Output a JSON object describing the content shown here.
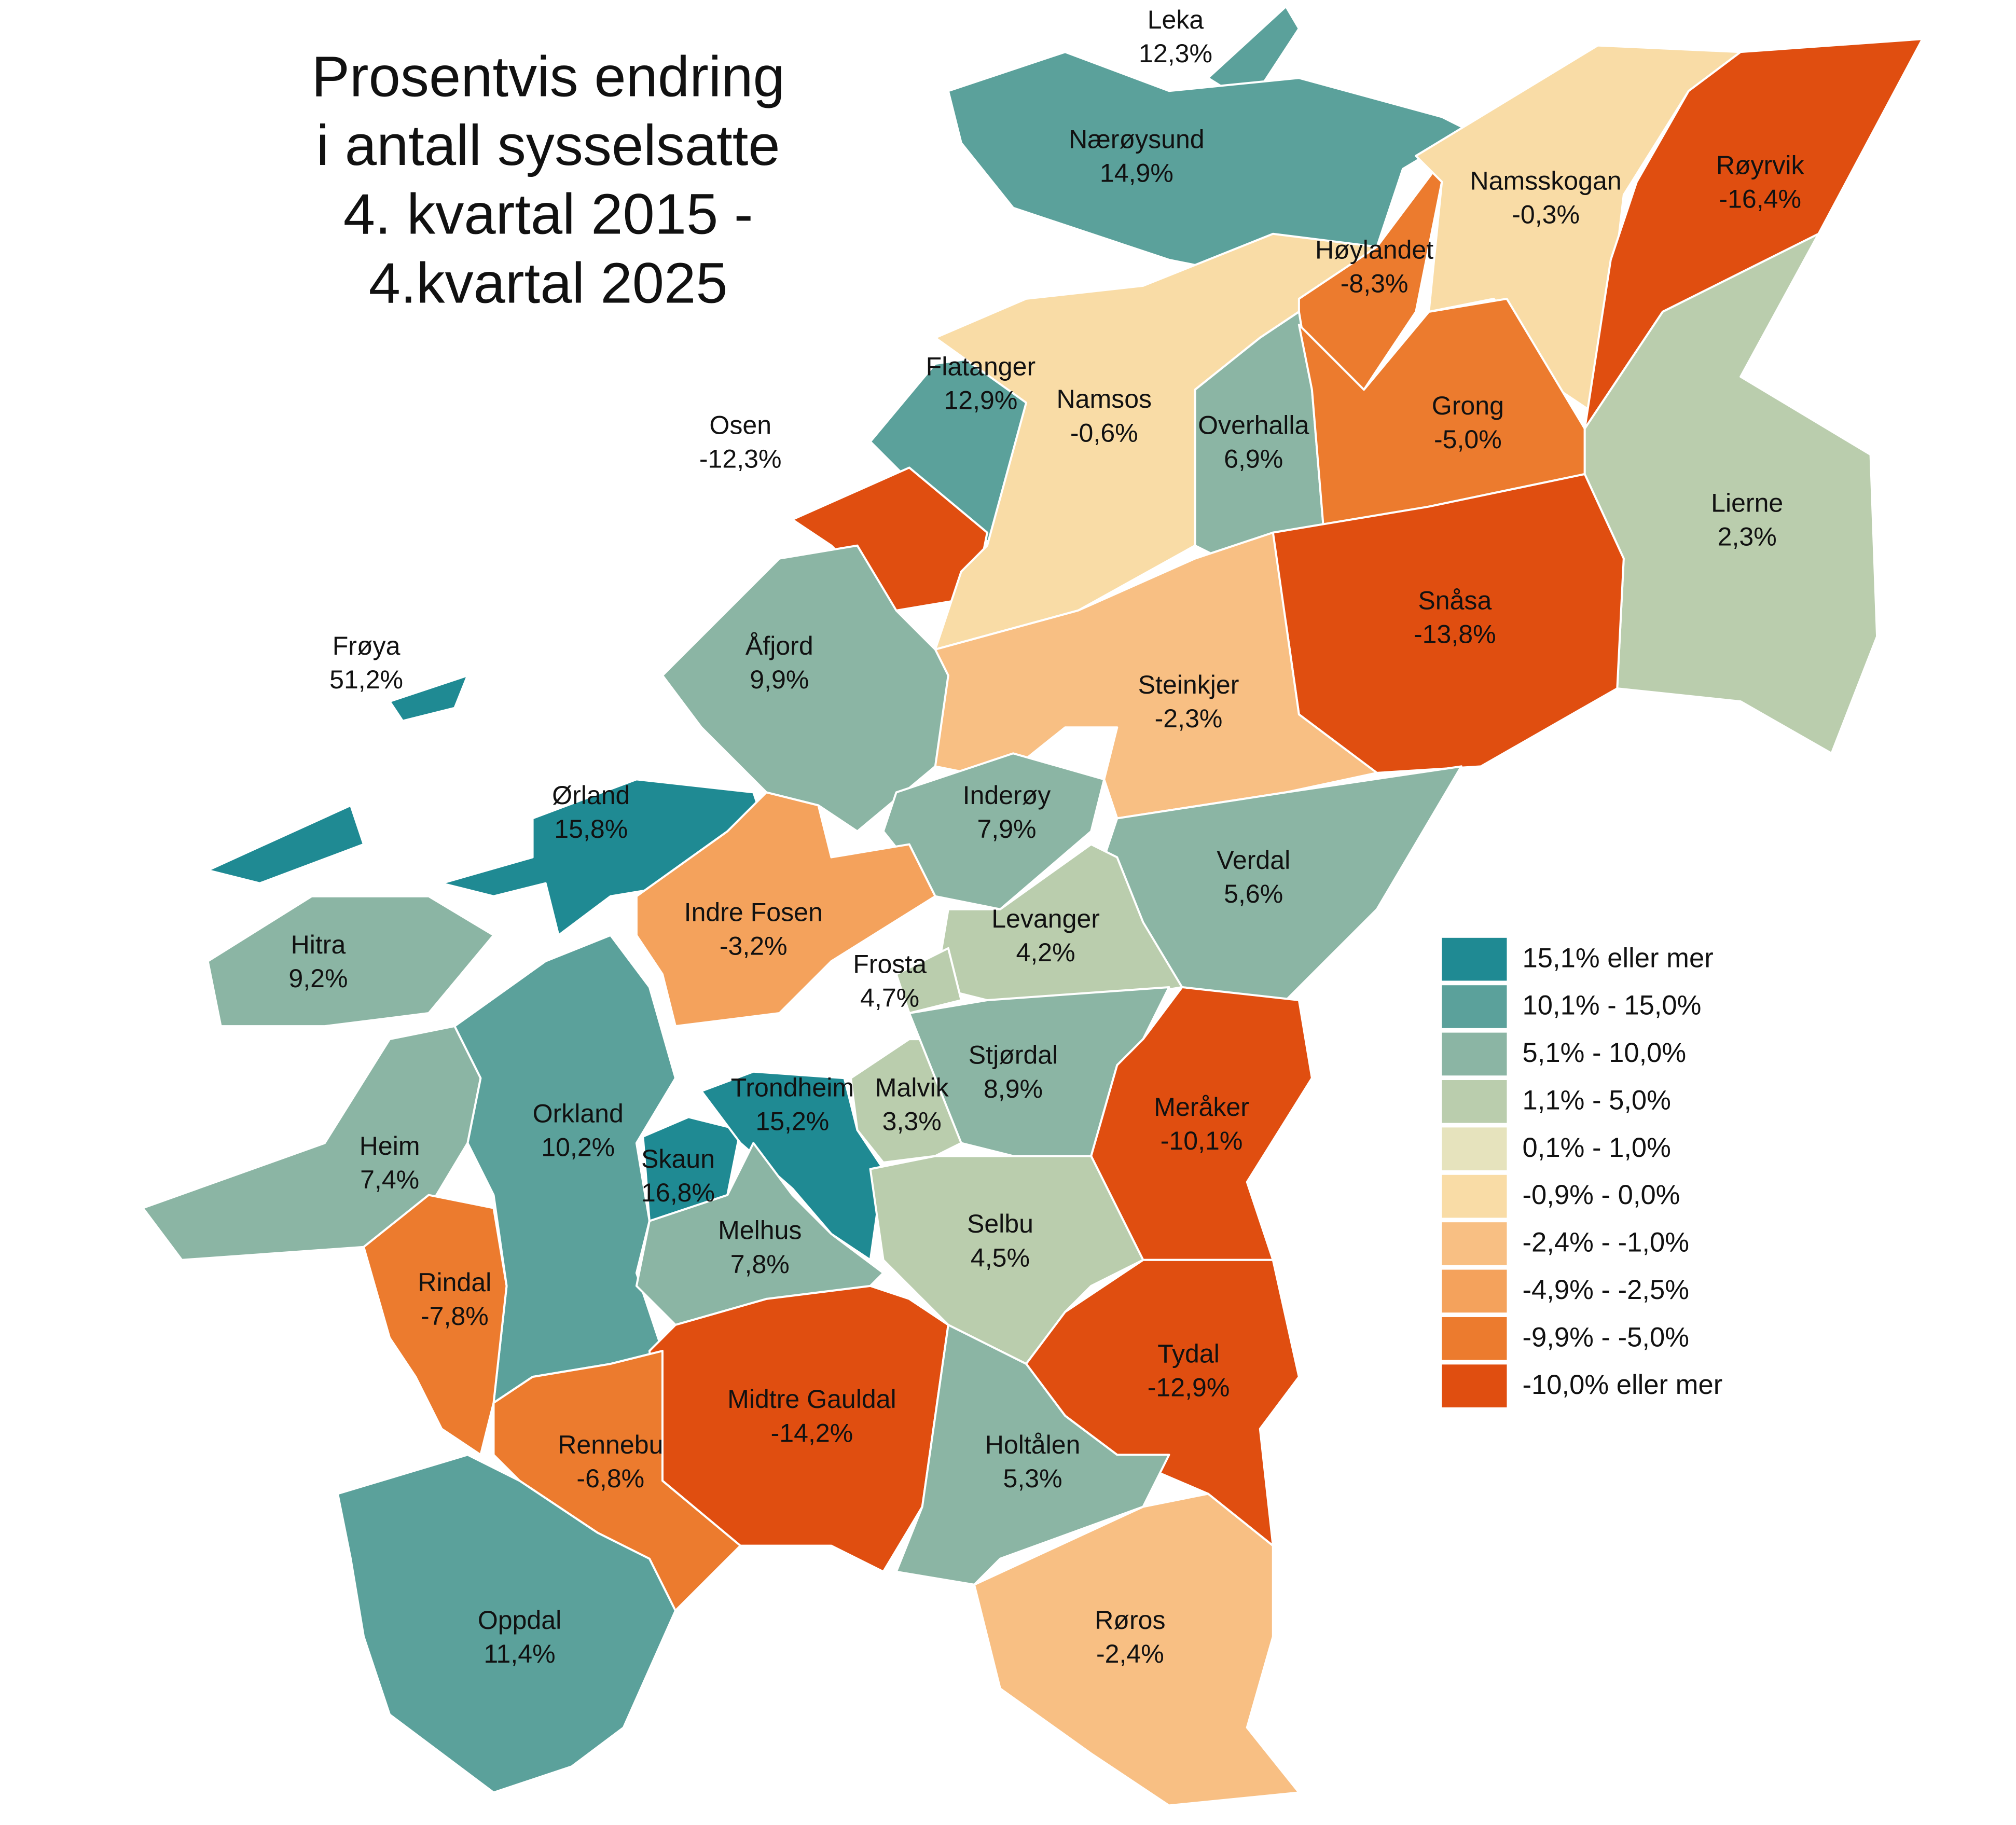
{
  "title_lines": [
    "Prosentvis endring",
    "i antall sysselsatte",
    "4. kvartal 2015 -",
    "4.kvartal 2025"
  ],
  "regions": [
    {
      "name": "Leka",
      "value": 12.3,
      "value_label": "12,3%",
      "color": "#5ba19b"
    },
    {
      "name": "Nærøysund",
      "value": 14.9,
      "value_label": "14,9%",
      "color": "#5ba19b"
    },
    {
      "name": "Flatanger",
      "value": 12.9,
      "value_label": "12,9%",
      "color": "#5ba19b"
    },
    {
      "name": "Osen",
      "value": -12.3,
      "value_label": "-12,3%",
      "color": "#e04e10"
    },
    {
      "name": "Namsos",
      "value": -0.6,
      "value_label": "-0,6%",
      "color": "#f9dca6"
    },
    {
      "name": "Høylandet",
      "value": -8.3,
      "value_label": "-8,3%",
      "color": "#ec7b2e"
    },
    {
      "name": "Namsskogan",
      "value": -0.3,
      "value_label": "-0,3%",
      "color": "#f9dca6"
    },
    {
      "name": "Røyrvik",
      "value": -16.4,
      "value_label": "-16,4%",
      "color": "#e04e10"
    },
    {
      "name": "Overhalla",
      "value": 6.9,
      "value_label": "6,9%",
      "color": "#8bb5a4"
    },
    {
      "name": "Grong",
      "value": -5.0,
      "value_label": "-5,0%",
      "color": "#ec7b2e"
    },
    {
      "name": "Lierne",
      "value": 2.3,
      "value_label": "2,3%",
      "color": "#bacdad"
    },
    {
      "name": "Snåsa",
      "value": -13.8,
      "value_label": "-13,8%",
      "color": "#e04e10"
    },
    {
      "name": "Steinkjer",
      "value": -2.3,
      "value_label": "-2,3%",
      "color": "#f8bf83"
    },
    {
      "name": "Åfjord",
      "value": 9.9,
      "value_label": "9,9%",
      "color": "#8bb5a4"
    },
    {
      "name": "Frøya",
      "value": 51.2,
      "value_label": "51,2%",
      "color": "#1f8a93"
    },
    {
      "name": "Ørland",
      "value": 15.8,
      "value_label": "15,8%",
      "color": "#1f8a93"
    },
    {
      "name": "Inderøy",
      "value": 7.9,
      "value_label": "7,9%",
      "color": "#8bb5a4"
    },
    {
      "name": "Indre Fosen",
      "value": -3.2,
      "value_label": "-3,2%",
      "color": "#f4a25c"
    },
    {
      "name": "Verdal",
      "value": 5.6,
      "value_label": "5,6%",
      "color": "#8bb5a4"
    },
    {
      "name": "Levanger",
      "value": 4.2,
      "value_label": "4,2%",
      "color": "#bacdad"
    },
    {
      "name": "Frosta",
      "value": 4.7,
      "value_label": "4,7%",
      "color": "#bacdad"
    },
    {
      "name": "Hitra",
      "value": 9.2,
      "value_label": "9,2%",
      "color": "#8bb5a4"
    },
    {
      "name": "Heim",
      "value": 7.4,
      "value_label": "7,4%",
      "color": "#8bb5a4"
    },
    {
      "name": "Orkland",
      "value": 10.2,
      "value_label": "10,2%",
      "color": "#5ba19b"
    },
    {
      "name": "Skaun",
      "value": 16.8,
      "value_label": "16,8%",
      "color": "#1f8a93"
    },
    {
      "name": "Trondheim",
      "value": 15.2,
      "value_label": "15,2%",
      "color": "#1f8a93"
    },
    {
      "name": "Malvik",
      "value": 3.3,
      "value_label": "3,3%",
      "color": "#bacdad"
    },
    {
      "name": "Stjørdal",
      "value": 8.9,
      "value_label": "8,9%",
      "color": "#8bb5a4"
    },
    {
      "name": "Meråker",
      "value": -10.1,
      "value_label": "-10,1%",
      "color": "#e04e10"
    },
    {
      "name": "Melhus",
      "value": 7.8,
      "value_label": "7,8%",
      "color": "#8bb5a4"
    },
    {
      "name": "Selbu",
      "value": 4.5,
      "value_label": "4,5%",
      "color": "#bacdad"
    },
    {
      "name": "Rindal",
      "value": -7.8,
      "value_label": "-7,8%",
      "color": "#ec7b2e"
    },
    {
      "name": "Midtre Gauldal",
      "value": -14.2,
      "value_label": "-14,2%",
      "color": "#e04e10"
    },
    {
      "name": "Rennebu",
      "value": -6.8,
      "value_label": "-6,8%",
      "color": "#ec7b2e"
    },
    {
      "name": "Tydal",
      "value": -12.9,
      "value_label": "-12,9%",
      "color": "#e04e10"
    },
    {
      "name": "Holtålen",
      "value": 5.3,
      "value_label": "5,3%",
      "color": "#8bb5a4"
    },
    {
      "name": "Oppdal",
      "value": 11.4,
      "value_label": "11,4%",
      "color": "#5ba19b"
    },
    {
      "name": "Røros",
      "value": -2.4,
      "value_label": "-2,4%",
      "color": "#f8bf83"
    }
  ],
  "legend": [
    {
      "label": "15,1% eller mer",
      "color": "#1f8a93"
    },
    {
      "label": "10,1% - 15,0%",
      "color": "#5ba19b"
    },
    {
      "label": "5,1% - 10,0%",
      "color": "#8bb5a4"
    },
    {
      "label": "1,1% - 5,0%",
      "color": "#bacdad"
    },
    {
      "label": "0,1% - 1,0%",
      "color": "#e6e3bd"
    },
    {
      "label": "-0,9% - 0,0%",
      "color": "#f9dca6"
    },
    {
      "label": "-2,4% - -1,0%",
      "color": "#f8bf83"
    },
    {
      "label": "-4,9% - -2,5%",
      "color": "#f4a25c"
    },
    {
      "label": "-9,9% - -5,0%",
      "color": "#ec7b2e"
    },
    {
      "label": "-10,0% eller mer",
      "color": "#e04e10"
    }
  ]
}
